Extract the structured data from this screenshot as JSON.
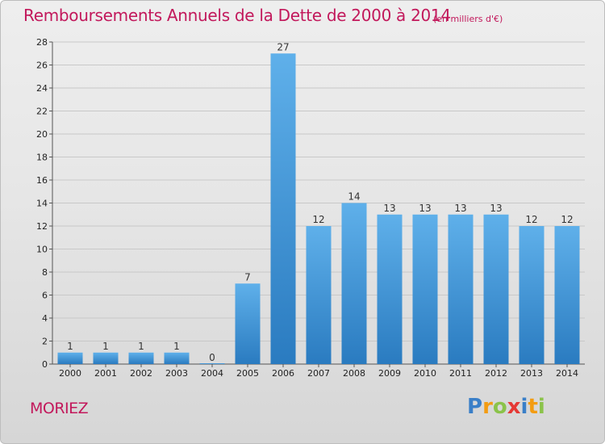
{
  "title": "Remboursements Annuels de la Dette de 2000 à 2014",
  "subtitle": "(en milliers d'€)",
  "location": "MORIEZ",
  "logo": {
    "text": "Proxiti",
    "letters": [
      {
        "ch": "P",
        "color": "#3a7fc8"
      },
      {
        "ch": "r",
        "color": "#f39c12"
      },
      {
        "ch": "o",
        "color": "#8bc34a"
      },
      {
        "ch": "x",
        "color": "#e53935"
      },
      {
        "ch": "i",
        "color": "#3a7fc8"
      },
      {
        "ch": "t",
        "color": "#f39c12"
      },
      {
        "ch": "i",
        "color": "#8bc34a"
      }
    ]
  },
  "colors": {
    "title": "#c2185b",
    "bar_top": "#5fb0ea",
    "bar_bottom": "#2a7bc0",
    "grid": "#c8c8c8"
  },
  "chart_data": {
    "type": "bar",
    "title": "Remboursements Annuels de la Dette de 2000 à 2014",
    "subtitle": "(en milliers d'€)",
    "xlabel": "",
    "ylabel": "",
    "categories": [
      "2000",
      "2001",
      "2002",
      "2003",
      "2004",
      "2005",
      "2006",
      "2007",
      "2008",
      "2009",
      "2010",
      "2011",
      "2012",
      "2013",
      "2014"
    ],
    "values": [
      1,
      1,
      1,
      1,
      0,
      7,
      27,
      12,
      14,
      13,
      13,
      13,
      13,
      12,
      12
    ],
    "data_labels": [
      "1",
      "1",
      "1",
      "1",
      "0",
      "7",
      "27",
      "12",
      "14",
      "13",
      "13",
      "13",
      "13",
      "12",
      "12"
    ],
    "ylim": [
      0,
      28
    ],
    "yticks": [
      0,
      2,
      4,
      6,
      8,
      10,
      12,
      14,
      16,
      18,
      20,
      22,
      24,
      26,
      28
    ],
    "grid": true,
    "legend": "none"
  }
}
